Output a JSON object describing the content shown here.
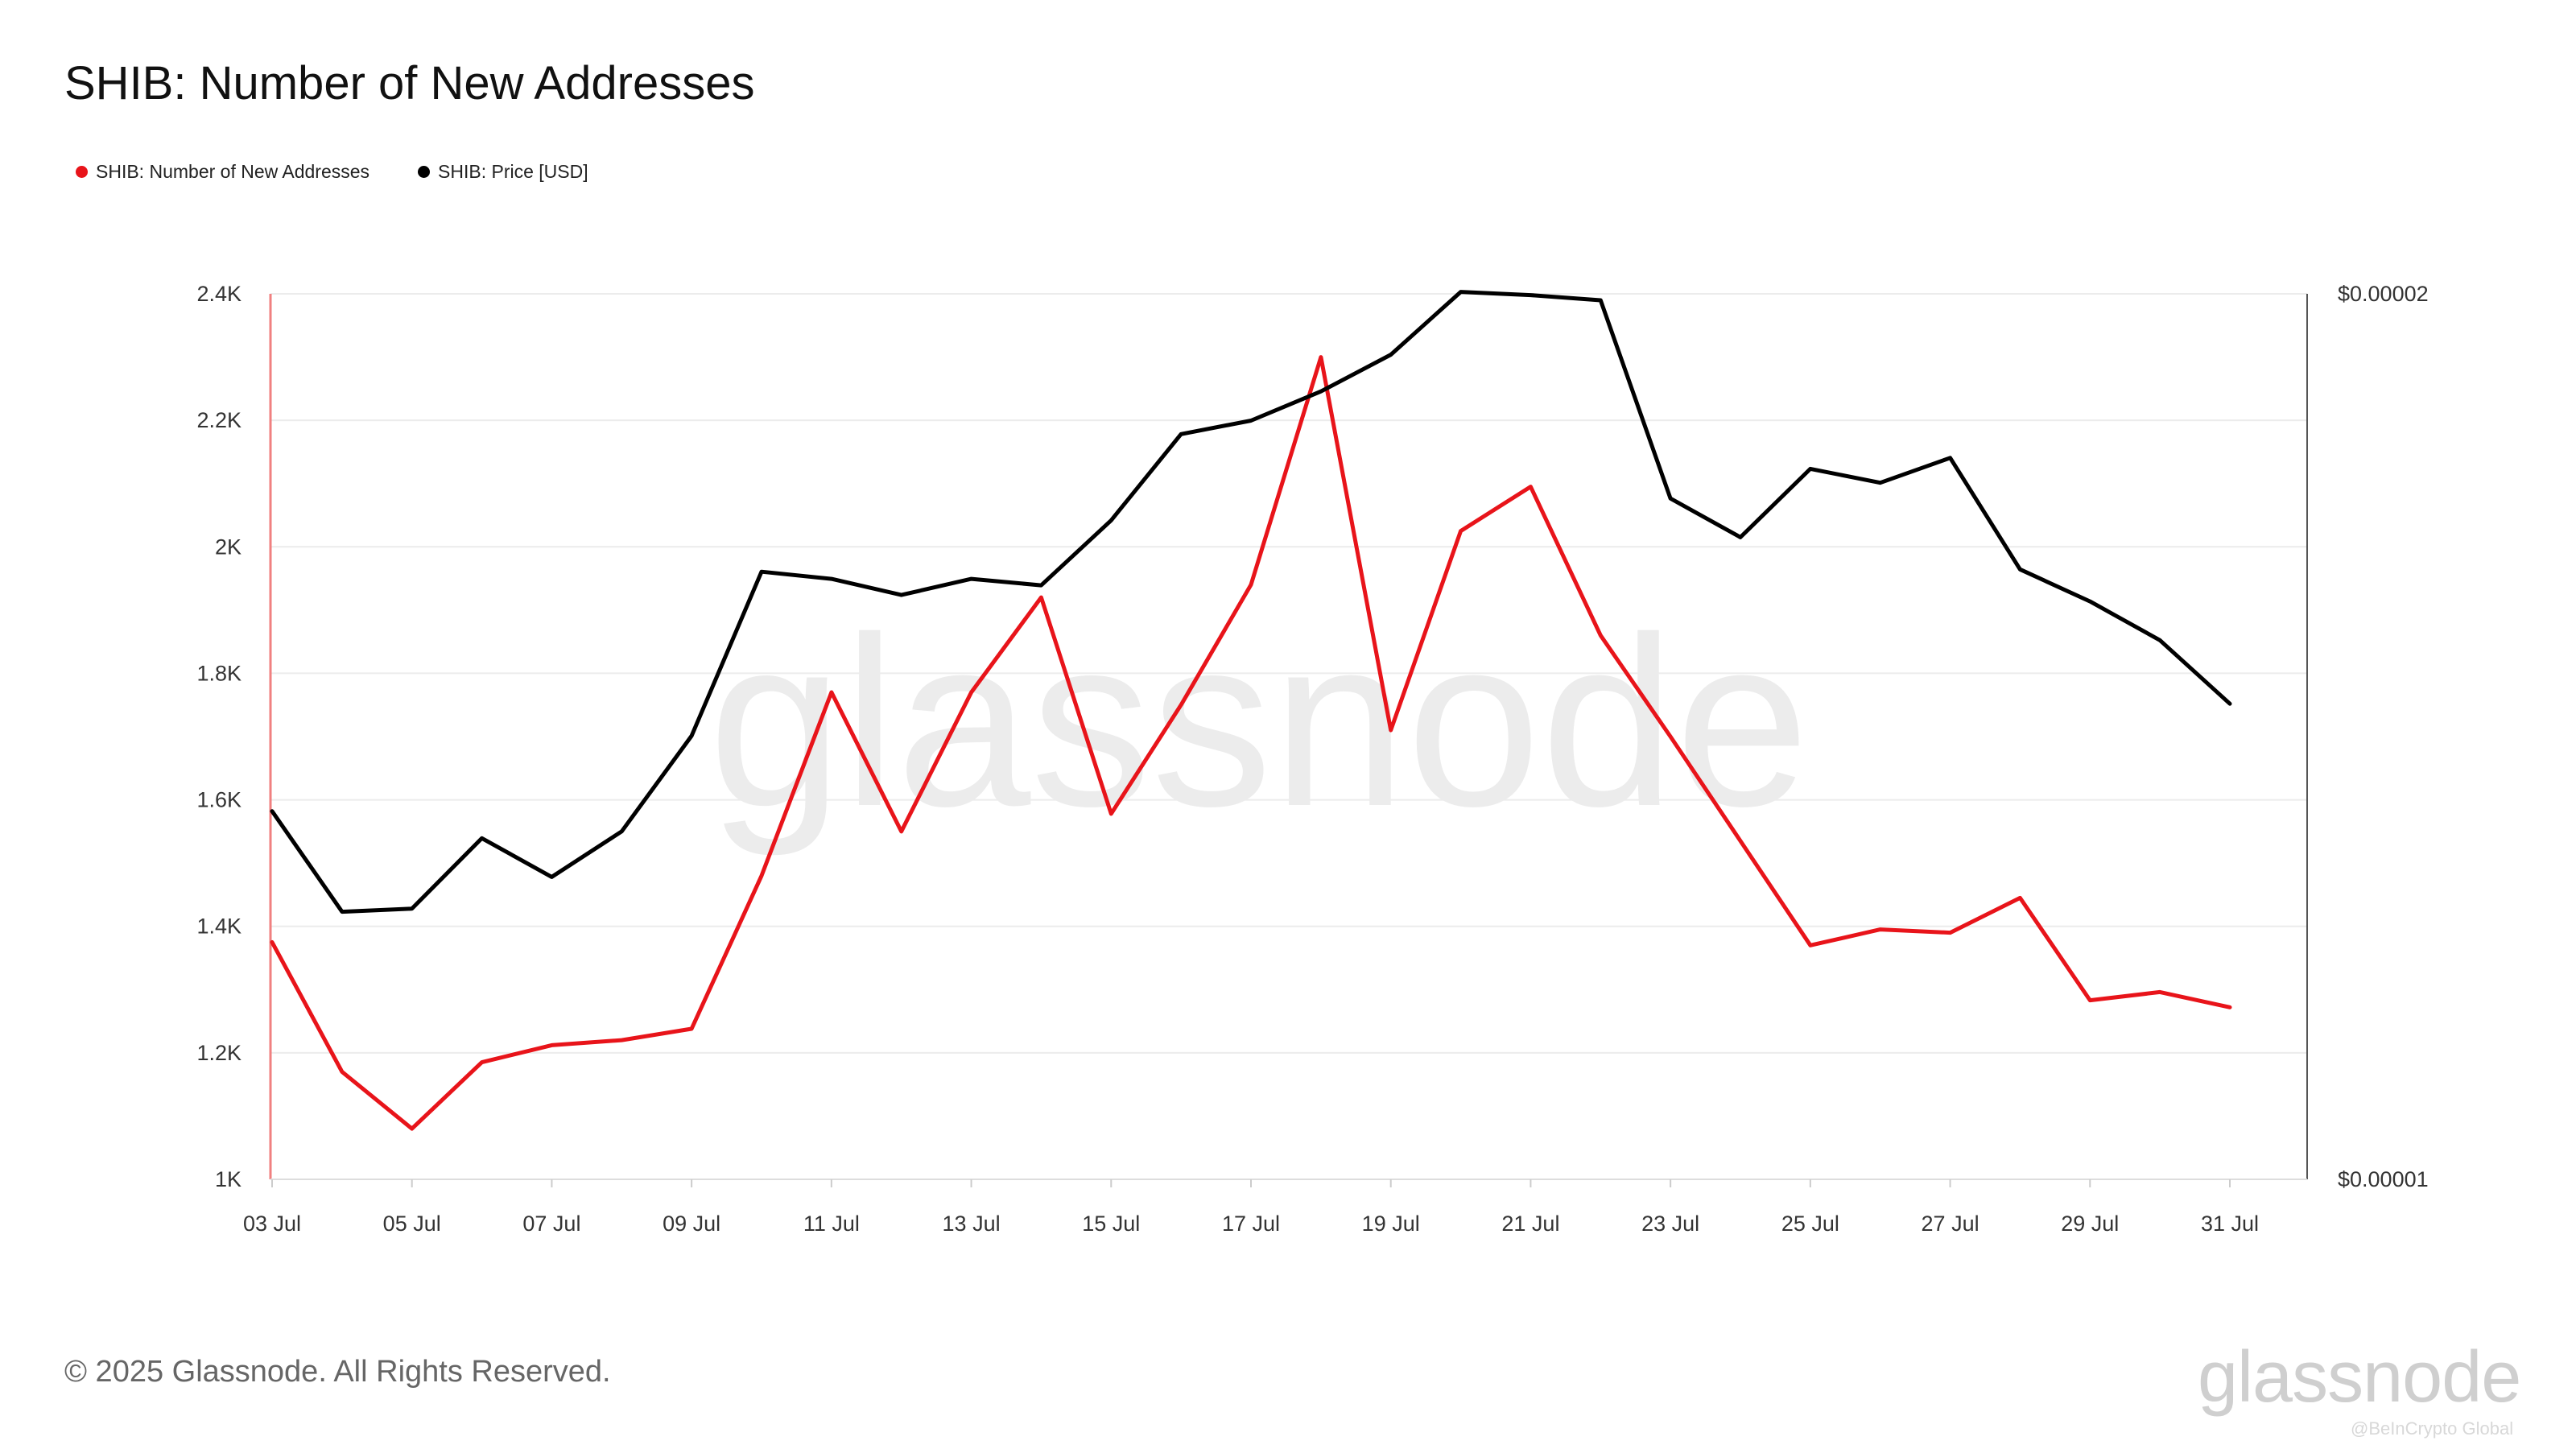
{
  "title": "SHIB: Number of New Addresses",
  "footer": "© 2025 Glassnode. All Rights Reserved.",
  "brand": "glassnode",
  "watermark_small": "@BeInCrypto Global",
  "colors": {
    "addresses": "#e8141a",
    "price": "#000000",
    "grid": "#ececec",
    "left_axis": "#f08080",
    "right_axis": "#555555"
  },
  "legend": [
    {
      "label": "SHIB: Number of New Addresses",
      "color": "#e8141a"
    },
    {
      "label": "SHIB: Price [USD]",
      "color": "#000000"
    }
  ],
  "chart_data": {
    "type": "line",
    "title": "SHIB: Number of New Addresses",
    "x": [
      "03 Jul",
      "04 Jul",
      "05 Jul",
      "06 Jul",
      "07 Jul",
      "08 Jul",
      "09 Jul",
      "10 Jul",
      "11 Jul",
      "12 Jul",
      "13 Jul",
      "14 Jul",
      "15 Jul",
      "16 Jul",
      "17 Jul",
      "18 Jul",
      "19 Jul",
      "20 Jul",
      "21 Jul",
      "22 Jul",
      "23 Jul",
      "24 Jul",
      "25 Jul",
      "26 Jul",
      "27 Jul",
      "28 Jul",
      "29 Jul",
      "30 Jul",
      "31 Jul"
    ],
    "x_tick_labels": [
      "03 Jul",
      "05 Jul",
      "07 Jul",
      "09 Jul",
      "11 Jul",
      "13 Jul",
      "15 Jul",
      "17 Jul",
      "19 Jul",
      "21 Jul",
      "23 Jul",
      "25 Jul",
      "27 Jul",
      "29 Jul",
      "31 Jul"
    ],
    "y_left": {
      "min": 1000,
      "max": 2400,
      "ticks": [
        1000,
        1200,
        1400,
        1600,
        1800,
        2000,
        2200,
        2400
      ],
      "tick_labels": [
        "1K",
        "1.2K",
        "1.4K",
        "1.6K",
        "1.8K",
        "2K",
        "2.2K",
        "2.4K"
      ]
    },
    "y_right": {
      "scale": "log",
      "min": 1e-05,
      "max": 2e-05,
      "ticks": [
        1e-05,
        2e-05
      ],
      "tick_labels": [
        "$0.00001",
        "$0.00002"
      ]
    },
    "series": [
      {
        "name": "SHIB: Number of New Addresses",
        "axis": "left",
        "color": "#e8141a",
        "values": [
          1375,
          1170,
          1080,
          1185,
          1212,
          1220,
          1238,
          1480,
          1770,
          1550,
          1770,
          1920,
          1578,
          1750,
          1940,
          2300,
          1710,
          2025,
          2095,
          1860,
          1700,
          1535,
          1370,
          1395,
          1390,
          1445,
          1283,
          1296,
          1272
        ]
      },
      {
        "name": "SHIB: Price [USD]",
        "axis": "right",
        "color": "#000000",
        "values": [
          1.334e-05,
          1.233e-05,
          1.236e-05,
          1.306e-05,
          1.267e-05,
          1.313e-05,
          1.415e-05,
          1.609e-05,
          1.6e-05,
          1.58e-05,
          1.6e-05,
          1.592e-05,
          1.675e-05,
          1.792e-05,
          1.811e-05,
          1.853e-05,
          1.907e-05,
          2.003e-05,
          1.998e-05,
          1.99e-05,
          1.704e-05,
          1.653e-05,
          1.744e-05,
          1.725e-05,
          1.759e-05,
          1.612e-05,
          1.572e-05,
          1.525e-05,
          1.451e-05
        ]
      }
    ],
    "grid": true,
    "legend_position": "top-left"
  }
}
